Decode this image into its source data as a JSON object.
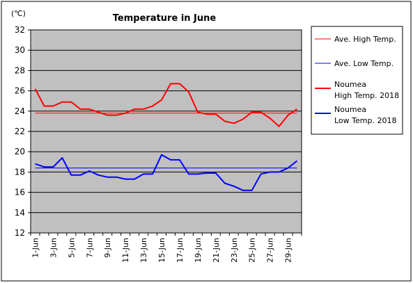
{
  "chart_data": {
    "type": "line",
    "title": "Temperature in June",
    "unit_label": "(℃)",
    "ylim": [
      12,
      32
    ],
    "y_ticks": [
      12,
      14,
      16,
      18,
      20,
      22,
      24,
      26,
      28,
      30,
      32
    ],
    "x_tick_labels": [
      "1-Jun",
      "3-Jun",
      "5-Jun",
      "7-Jun",
      "9-Jun",
      "11-Jun",
      "13-Jun",
      "15-Jun",
      "17-Jun",
      "19-Jun",
      "21-Jun",
      "23-Jun",
      "25-Jun",
      "27-Jun",
      "29-Jun"
    ],
    "x": [
      1,
      2,
      3,
      4,
      5,
      6,
      7,
      8,
      9,
      10,
      11,
      12,
      13,
      14,
      15,
      16,
      17,
      18,
      19,
      20,
      21,
      22,
      23,
      24,
      25,
      26,
      27,
      28,
      29,
      30
    ],
    "grid": "horizontal",
    "plot_background": "#c0c0c0",
    "legend_position": "right",
    "series": [
      {
        "name": "Ave. High Temp.",
        "color": "#ff0000",
        "style": "thin",
        "values": [
          23.8,
          23.8,
          23.8,
          23.8,
          23.8,
          23.8,
          23.8,
          23.8,
          23.8,
          23.8,
          23.8,
          23.8,
          23.8,
          23.8,
          23.8,
          23.8,
          23.8,
          23.8,
          23.8,
          23.8,
          23.8,
          23.8,
          23.8,
          23.8,
          23.8,
          23.8,
          23.8,
          23.8,
          23.8,
          23.8
        ]
      },
      {
        "name": "Ave. Low Temp.",
        "color": "#0000ff",
        "style": "thin",
        "values": [
          18.4,
          18.4,
          18.4,
          18.4,
          18.4,
          18.4,
          18.4,
          18.4,
          18.4,
          18.4,
          18.4,
          18.4,
          18.4,
          18.4,
          18.4,
          18.4,
          18.4,
          18.4,
          18.4,
          18.4,
          18.4,
          18.4,
          18.4,
          18.4,
          18.4,
          18.4,
          18.4,
          18.4,
          18.4,
          18.4
        ]
      },
      {
        "name": "Noumea High Temp. 2018",
        "legend_lines": [
          "Noumea",
          "High Temp. 2018"
        ],
        "color": "#ff0000",
        "style": "thick",
        "values": [
          26.2,
          24.5,
          24.5,
          24.9,
          24.9,
          24.2,
          24.2,
          23.9,
          23.6,
          23.6,
          23.8,
          24.2,
          24.2,
          24.5,
          25.1,
          26.7,
          26.7,
          25.9,
          23.9,
          23.7,
          23.7,
          23.0,
          22.8,
          23.2,
          23.9,
          23.9,
          23.3,
          22.5,
          23.6,
          24.2
        ]
      },
      {
        "name": "Noumea Low Temp. 2018",
        "legend_lines": [
          "Noumea",
          "Low Temp. 2018"
        ],
        "color": "#0000ff",
        "style": "thick",
        "values": [
          18.8,
          18.5,
          18.5,
          19.4,
          17.7,
          17.7,
          18.1,
          17.7,
          17.5,
          17.5,
          17.3,
          17.3,
          17.8,
          17.8,
          19.7,
          19.2,
          19.2,
          17.8,
          17.8,
          17.9,
          17.9,
          16.9,
          16.6,
          16.2,
          16.2,
          17.8,
          18.0,
          18.0,
          18.4,
          19.1
        ]
      }
    ]
  }
}
